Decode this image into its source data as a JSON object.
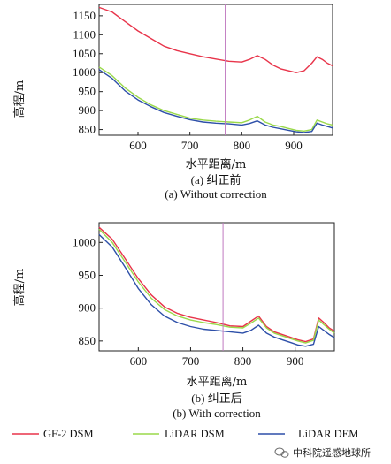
{
  "colors": {
    "gf2": "#e8344a",
    "lidar_dsm": "#9ad94a",
    "lidar_dem": "#2d4fa8",
    "marker": "#c07ac0"
  },
  "watermark": "中科院遥感地球所",
  "legend": [
    {
      "label": "GF-2 DSM",
      "color": "#e8344a"
    },
    {
      "label": "LiDAR DSM",
      "color": "#9ad94a"
    },
    {
      "label": "LiDAR DEM",
      "color": "#2d4fa8"
    }
  ],
  "chart_data": [
    {
      "type": "line",
      "caption_cn": "(a) 纠正前",
      "caption_en": "(a) Without correction",
      "xlabel": "水平距离/m",
      "ylabel": "高程/m",
      "xlim": [
        525,
        975
      ],
      "ylim": [
        835,
        1180
      ],
      "xticks": [
        600,
        700,
        800,
        900
      ],
      "yticks": [
        850,
        900,
        950,
        1000,
        1050,
        1100,
        1150
      ],
      "marker_x": 768,
      "x": [
        525,
        550,
        575,
        600,
        625,
        650,
        675,
        700,
        725,
        750,
        775,
        800,
        815,
        830,
        845,
        860,
        875,
        890,
        905,
        920,
        935,
        945,
        955,
        965,
        975
      ],
      "series": [
        {
          "name": "GF-2 DSM",
          "color": "#e8344a",
          "values": [
            1172,
            1160,
            1135,
            1110,
            1090,
            1070,
            1058,
            1050,
            1042,
            1036,
            1030,
            1028,
            1035,
            1045,
            1035,
            1020,
            1010,
            1005,
            1000,
            1005,
            1025,
            1042,
            1035,
            1025,
            1018
          ]
        },
        {
          "name": "LiDAR DSM",
          "color": "#9ad94a",
          "values": [
            1015,
            992,
            960,
            935,
            915,
            900,
            890,
            880,
            875,
            872,
            870,
            868,
            875,
            885,
            870,
            862,
            858,
            853,
            848,
            846,
            850,
            875,
            870,
            865,
            862
          ]
        },
        {
          "name": "LiDAR DEM",
          "color": "#2d4fa8",
          "values": [
            1008,
            985,
            952,
            928,
            910,
            895,
            885,
            876,
            870,
            867,
            865,
            862,
            866,
            873,
            862,
            856,
            852,
            848,
            844,
            842,
            845,
            867,
            862,
            858,
            854
          ]
        }
      ]
    },
    {
      "type": "line",
      "caption_cn": "(b) 纠正后",
      "caption_en": "(b) With correction",
      "xlabel": "水平距离/m",
      "ylabel": "高程/m",
      "xlim": [
        525,
        975
      ],
      "ylim": [
        835,
        1030
      ],
      "xticks": [
        600,
        700,
        800,
        900
      ],
      "yticks": [
        850,
        900,
        950,
        1000
      ],
      "marker_x": 762,
      "x": [
        525,
        550,
        575,
        600,
        625,
        650,
        675,
        700,
        725,
        750,
        775,
        800,
        815,
        830,
        845,
        860,
        875,
        890,
        905,
        920,
        935,
        945,
        955,
        965,
        975
      ],
      "series": [
        {
          "name": "GF-2 DSM",
          "color": "#e8344a",
          "values": [
            1023,
            1005,
            975,
            945,
            920,
            902,
            892,
            886,
            882,
            878,
            873,
            872,
            880,
            888,
            872,
            864,
            860,
            856,
            852,
            849,
            853,
            885,
            878,
            870,
            865
          ]
        },
        {
          "name": "LiDAR DSM",
          "color": "#9ad94a",
          "values": [
            1020,
            1000,
            970,
            940,
            915,
            898,
            888,
            882,
            878,
            875,
            871,
            870,
            877,
            885,
            870,
            862,
            858,
            854,
            850,
            847,
            851,
            882,
            875,
            868,
            862
          ]
        },
        {
          "name": "LiDAR DEM",
          "color": "#2d4fa8",
          "values": [
            1012,
            993,
            962,
            930,
            905,
            888,
            878,
            872,
            868,
            866,
            864,
            862,
            866,
            874,
            862,
            856,
            852,
            848,
            844,
            842,
            845,
            872,
            866,
            860,
            855
          ]
        }
      ]
    }
  ]
}
